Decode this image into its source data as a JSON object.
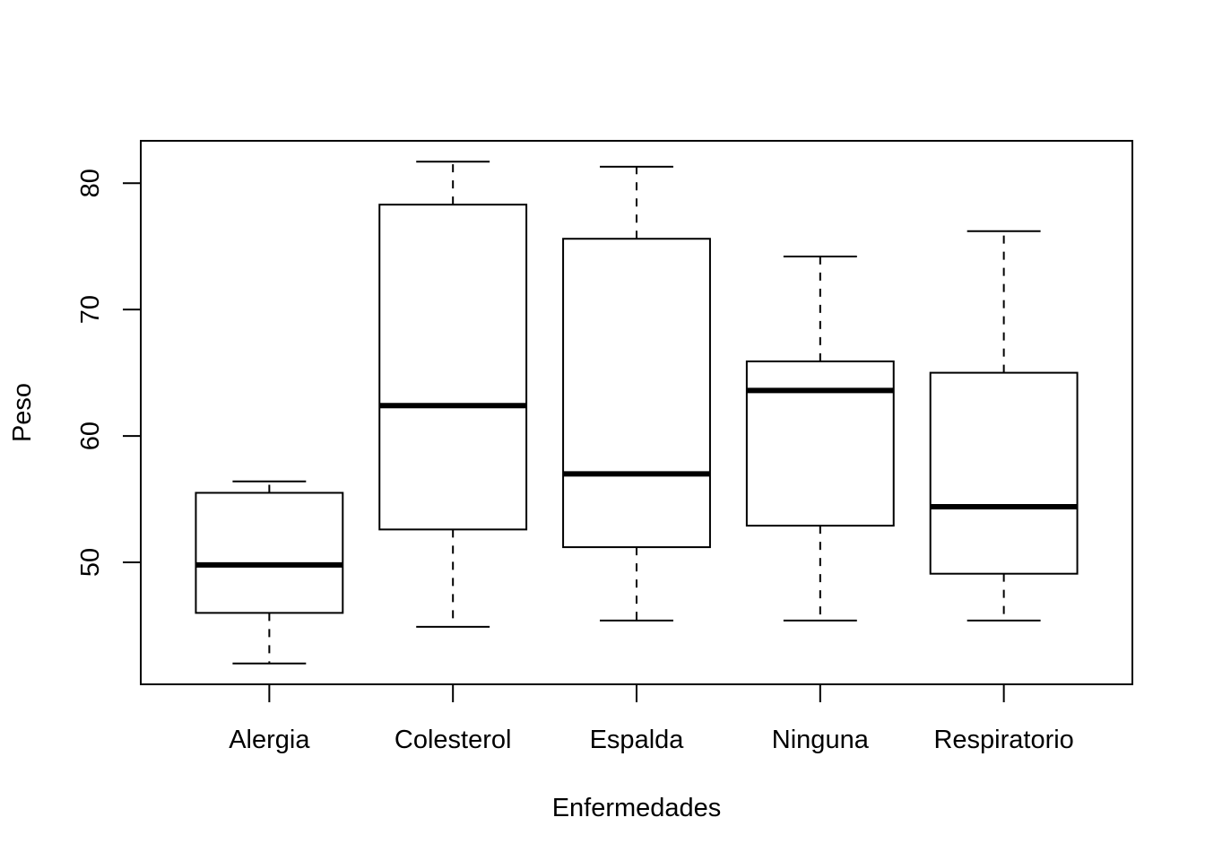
{
  "chart_data": {
    "type": "boxplot",
    "title": "",
    "xlabel": "Enfermedades",
    "ylabel": "Peso",
    "categories": [
      "Alergia",
      "Colesterol",
      "Espalda",
      "Ninguna",
      "Respiratorio"
    ],
    "boxes": [
      {
        "category": "Alergia",
        "whisker_low": 42.0,
        "q1": 46.0,
        "median": 49.8,
        "q3": 55.5,
        "whisker_high": 56.4
      },
      {
        "category": "Colesterol",
        "whisker_low": 44.9,
        "q1": 52.6,
        "median": 62.4,
        "q3": 78.3,
        "whisker_high": 81.7
      },
      {
        "category": "Espalda",
        "whisker_low": 45.4,
        "q1": 51.2,
        "median": 57.0,
        "q3": 75.6,
        "whisker_high": 81.3
      },
      {
        "category": "Ninguna",
        "whisker_low": 45.4,
        "q1": 52.9,
        "median": 63.6,
        "q3": 65.9,
        "whisker_high": 74.2
      },
      {
        "category": "Respiratorio",
        "whisker_low": 45.4,
        "q1": 49.1,
        "median": 54.4,
        "q3": 65.0,
        "whisker_high": 76.2
      }
    ],
    "yticks": [
      50,
      60,
      70,
      80
    ],
    "ylim": [
      40.35,
      83.35
    ],
    "grid": false,
    "legend": "none"
  }
}
